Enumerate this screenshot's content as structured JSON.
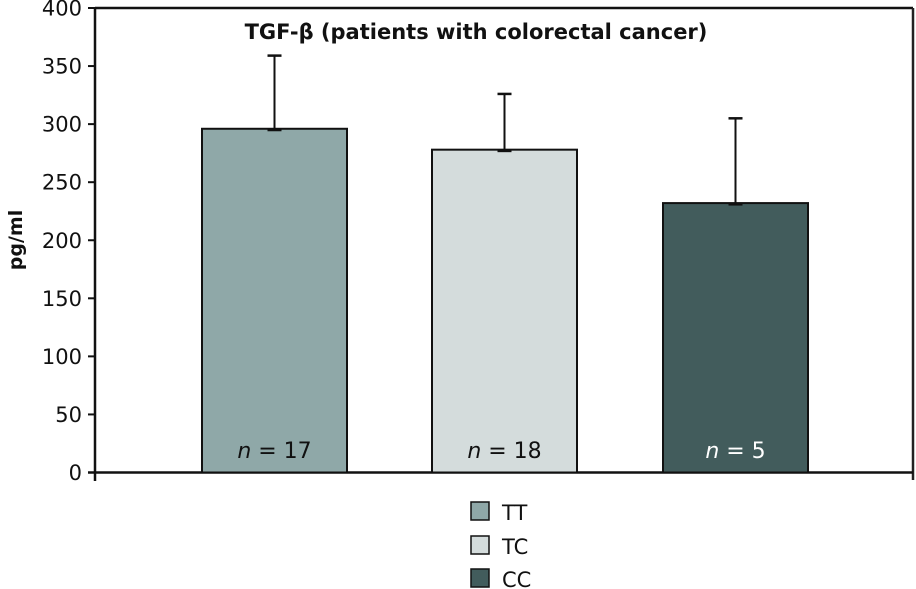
{
  "chart_data": {
    "type": "bar",
    "title": "TGF-β (patients with colorectal cancer)",
    "xlabel": "",
    "ylabel": "pg/ml",
    "ylim": [
      0,
      400
    ],
    "yticks": [
      0,
      50,
      100,
      150,
      200,
      250,
      300,
      350,
      400
    ],
    "grid": false,
    "categories": [
      "TT",
      "TC",
      "CC"
    ],
    "values": [
      296,
      278,
      232
    ],
    "error_upper": [
      359,
      326,
      305
    ],
    "n_labels": [
      {
        "prefix": "n",
        "text": " = 17"
      },
      {
        "prefix": "n",
        "text": " = 18"
      },
      {
        "prefix": "n",
        "text": " = 5"
      }
    ],
    "colors": [
      "#8fa8a8",
      "#d4dcdc",
      "#425c5c"
    ],
    "n_label_colors": [
      "#111111",
      "#111111",
      "#ffffff"
    ],
    "legend": {
      "placement": "bottom-center",
      "entries": [
        "TT",
        "TC",
        "CC"
      ]
    }
  }
}
